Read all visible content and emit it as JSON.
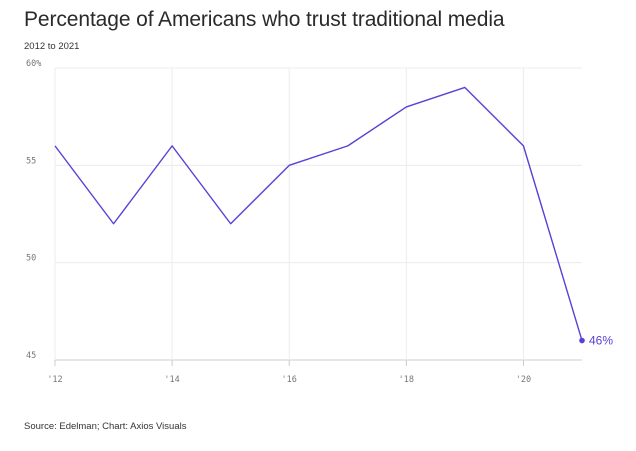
{
  "title": "Percentage of Americans who trust traditional media",
  "subtitle": "2012 to 2021",
  "source": "Source: Edelman; Chart: Axios Visuals",
  "colors": {
    "line": "#5b3fd6",
    "grid": "#ececec",
    "axis": "#cccccc"
  },
  "chart_data": {
    "type": "line",
    "title": "Percentage of Americans who trust traditional media",
    "subtitle": "2012 to 2021",
    "x": [
      2012,
      2013,
      2014,
      2015,
      2016,
      2017,
      2018,
      2019,
      2020,
      2021
    ],
    "values": [
      56,
      52,
      56,
      52,
      55,
      56,
      58,
      59,
      56,
      46
    ],
    "xlim": [
      2012,
      2021
    ],
    "ylim": [
      45,
      60
    ],
    "y_ticks": [
      60,
      55,
      50,
      45
    ],
    "y_tick_labels": [
      "60%",
      "55",
      "50",
      "45"
    ],
    "x_ticks": [
      2012,
      2014,
      2016,
      2018,
      2020
    ],
    "x_tick_labels": [
      "'12",
      "'14",
      "'16",
      "'18",
      "'20"
    ],
    "end_label": "46%",
    "grid": true
  }
}
